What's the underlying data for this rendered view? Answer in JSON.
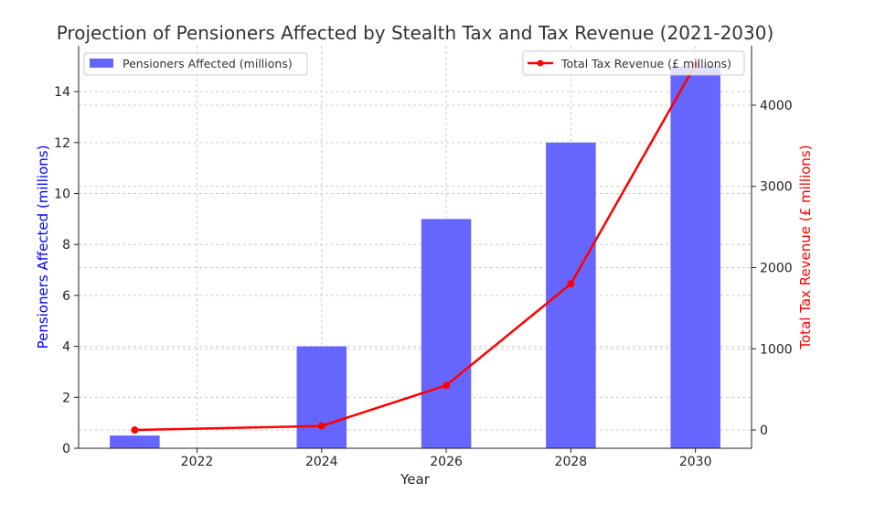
{
  "chart_data": {
    "type": "bar+line",
    "title": "Projection of Pensioners Affected by Stealth Tax and Tax Revenue (2021-2030)",
    "xlabel": "Year",
    "ylabel": "Pensioners Affected (millions)",
    "ylabel_right": "Total Tax Revenue (£ millions)",
    "x_ticks": [
      2022,
      2024,
      2026,
      2028,
      2030
    ],
    "y_ticks": [
      0,
      2,
      4,
      6,
      8,
      10,
      12,
      14
    ],
    "y_right_ticks": [
      0,
      1000,
      2000,
      3000,
      4000
    ],
    "xlim": [
      2020.1,
      2030.9
    ],
    "ylim": [
      0,
      15.8
    ],
    "ylim_right": [
      -225,
      4732
    ],
    "grid": true,
    "x": [
      2021,
      2024,
      2026,
      2028,
      2030
    ],
    "series": [
      {
        "name": "Pensioners Affected (millions)",
        "type": "bar",
        "axis": "left",
        "color": "#6666ff",
        "values": [
          0.5,
          4,
          9,
          12,
          15
        ],
        "legend": "top-left"
      },
      {
        "name": "Total Tax Revenue (£ millions)",
        "type": "line",
        "axis": "right",
        "color": "#ff0000",
        "values": [
          0,
          50,
          550,
          1800,
          4500
        ],
        "legend": "top-right"
      }
    ],
    "left_label_color": "#0000ff",
    "right_label_color": "#ff0000"
  }
}
